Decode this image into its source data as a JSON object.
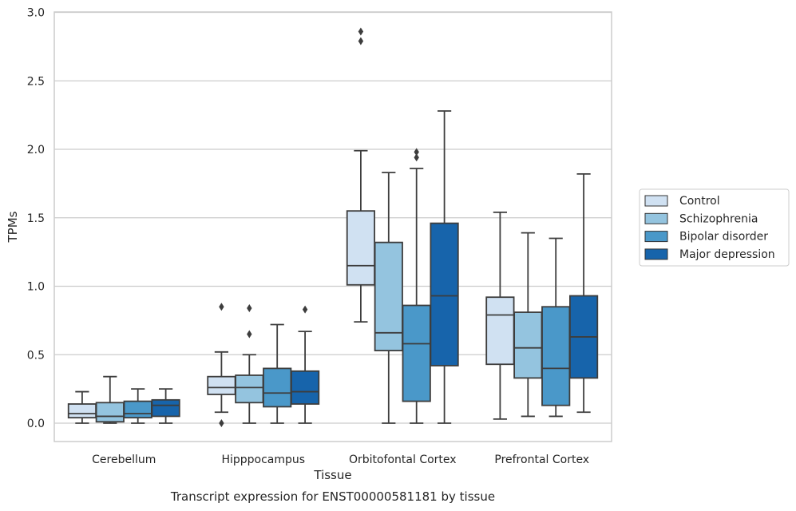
{
  "chart_data": {
    "type": "box",
    "title": "",
    "xlabel": "Tissue",
    "ylabel": "TPMs",
    "caption": "Transcript expression for ENST00000581181 by tissue",
    "ylim": [
      -0.13,
      3.0
    ],
    "yticks": [
      "0.0",
      "0.5",
      "1.0",
      "1.5",
      "2.0",
      "2.5",
      "3.0"
    ],
    "grid": "horizontal",
    "legend_position": "right",
    "categories": [
      "Cerebellum",
      "Hipppocampus",
      "Orbitofontal Cortex",
      "Prefrontal Cortex"
    ],
    "series": [
      {
        "name": "Control",
        "color": "#d0e1f2",
        "boxes": [
          {
            "whislo": 0.0,
            "q1": 0.04,
            "med": 0.07,
            "q3": 0.14,
            "whishi": 0.23,
            "fliers": []
          },
          {
            "whislo": 0.08,
            "q1": 0.21,
            "med": 0.26,
            "q3": 0.34,
            "whishi": 0.52,
            "fliers": [
              0.85,
              0.0
            ]
          },
          {
            "whislo": 0.74,
            "q1": 1.01,
            "med": 1.15,
            "q3": 1.55,
            "whishi": 1.99,
            "fliers": [
              2.86,
              2.79
            ]
          },
          {
            "whislo": 0.03,
            "q1": 0.43,
            "med": 0.79,
            "q3": 0.92,
            "whishi": 1.54,
            "fliers": []
          }
        ]
      },
      {
        "name": "Schizophrenia",
        "color": "#94c4df",
        "boxes": [
          {
            "whislo": 0.0,
            "q1": 0.01,
            "med": 0.05,
            "q3": 0.15,
            "whishi": 0.34,
            "fliers": []
          },
          {
            "whislo": 0.0,
            "q1": 0.15,
            "med": 0.26,
            "q3": 0.35,
            "whishi": 0.5,
            "fliers": [
              0.84,
              0.65
            ]
          },
          {
            "whislo": 0.0,
            "q1": 0.53,
            "med": 0.66,
            "q3": 1.32,
            "whishi": 1.83,
            "fliers": []
          },
          {
            "whislo": 0.05,
            "q1": 0.33,
            "med": 0.55,
            "q3": 0.81,
            "whishi": 1.39,
            "fliers": []
          }
        ]
      },
      {
        "name": "Bipolar disorder",
        "color": "#4a98c9",
        "boxes": [
          {
            "whislo": 0.0,
            "q1": 0.04,
            "med": 0.07,
            "q3": 0.16,
            "whishi": 0.25,
            "fliers": []
          },
          {
            "whislo": 0.0,
            "q1": 0.12,
            "med": 0.22,
            "q3": 0.4,
            "whishi": 0.72,
            "fliers": []
          },
          {
            "whislo": 0.0,
            "q1": 0.16,
            "med": 0.58,
            "q3": 0.86,
            "whishi": 1.86,
            "fliers": [
              1.98,
              1.94
            ]
          },
          {
            "whislo": 0.05,
            "q1": 0.13,
            "med": 0.4,
            "q3": 0.85,
            "whishi": 1.35,
            "fliers": []
          }
        ]
      },
      {
        "name": "Major depression",
        "color": "#1764ab",
        "boxes": [
          {
            "whislo": 0.0,
            "q1": 0.05,
            "med": 0.13,
            "q3": 0.17,
            "whishi": 0.25,
            "fliers": []
          },
          {
            "whislo": 0.0,
            "q1": 0.14,
            "med": 0.23,
            "q3": 0.38,
            "whishi": 0.67,
            "fliers": [
              0.83
            ]
          },
          {
            "whislo": 0.0,
            "q1": 0.42,
            "med": 0.93,
            "q3": 1.46,
            "whishi": 2.28,
            "fliers": []
          },
          {
            "whislo": 0.08,
            "q1": 0.33,
            "med": 0.63,
            "q3": 0.93,
            "whishi": 1.82,
            "fliers": []
          }
        ]
      }
    ]
  }
}
